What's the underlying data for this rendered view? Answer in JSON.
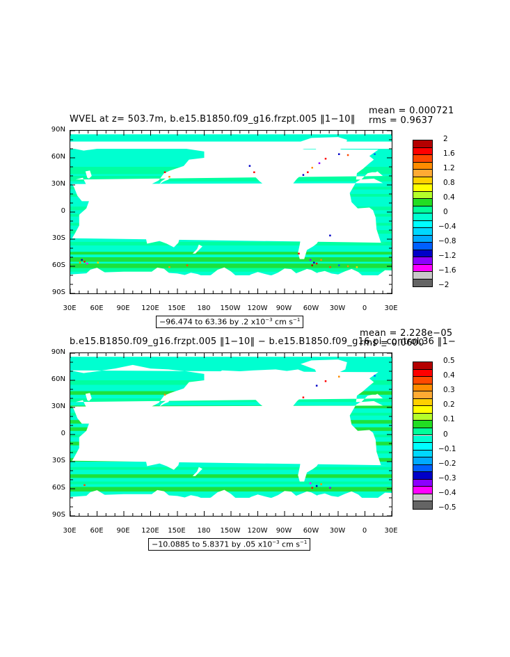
{
  "x_ticks": [
    "30E",
    "60E",
    "90E",
    "120E",
    "150E",
    "180",
    "150W",
    "120W",
    "90W",
    "60W",
    "30W",
    "0",
    "30E"
  ],
  "y_ticks": [
    "90N",
    "60N",
    "30N",
    "0",
    "30S",
    "60S",
    "90S"
  ],
  "panels": [
    {
      "title": "WVEL at z= 503.7m, b.e15.B1850.f09_g16.frzpt.005 ‖1−10‖",
      "mean": "mean = 0.000721",
      "rms": "rms = 0.9637",
      "range": {
        "pre": "−96.474 to 63.36 by .2 x10",
        "exp": "−3",
        "mid": " cm s",
        "exp2": "−1"
      },
      "colorbar": {
        "labels": [
          "2",
          "1.6",
          "1.2",
          "0.8",
          "0.4",
          "0",
          "−0.4",
          "−0.8",
          "−1.2",
          "−1.6",
          "−2"
        ],
        "colors": [
          "#b40000",
          "#ff0000",
          "#ff4800",
          "#ff8c00",
          "#ffaa33",
          "#ffd000",
          "#ffff00",
          "#b4ff2a",
          "#22dd22",
          "#00ff99",
          "#00ffd0",
          "#00ffff",
          "#00d8ff",
          "#00aaff",
          "#0060ff",
          "#0000c8",
          "#8c00ff",
          "#ff00ff",
          "#c8c8c8",
          "#646464"
        ]
      }
    },
    {
      "title": "b.e15.B1850.f09_g16.frzpt.005 ‖1−10‖ − b.e15.B1850.f09_g16.pi_control.36 ‖1−",
      "mean": "mean = 2.228e−05",
      "rms": "rms = 0.0600",
      "range": {
        "pre": "−10.0885 to 5.8371 by .05 x10",
        "exp": "−3",
        "mid": " cm s",
        "exp2": "−1"
      },
      "colorbar": {
        "labels": [
          "0.5",
          "0.4",
          "0.3",
          "0.2",
          "0.1",
          "0",
          "−0.1",
          "−0.2",
          "−0.3",
          "−0.4",
          "−0.5"
        ],
        "colors": [
          "#b40000",
          "#ff0000",
          "#ff4800",
          "#ff8c00",
          "#ffaa33",
          "#ffd000",
          "#ffff00",
          "#b4ff2a",
          "#22dd22",
          "#00ff99",
          "#00ffd0",
          "#00ffff",
          "#00d8ff",
          "#00aaff",
          "#0060ff",
          "#0000c8",
          "#8c00ff",
          "#ff00ff",
          "#c8c8c8",
          "#646464"
        ]
      }
    }
  ],
  "field_colors": {
    "base": "#00ffd0",
    "alt": "#00ff99",
    "green": "#22dd22",
    "land": "#ffffff"
  }
}
